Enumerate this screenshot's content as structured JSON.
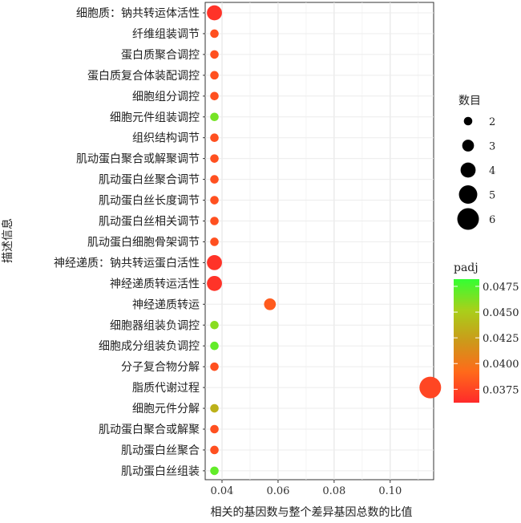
{
  "chart_data": {
    "type": "scatter",
    "xlabel": "相关的基因数与整个差异基因总数的比值",
    "ylabel": "描述信息",
    "xlim": [
      0.034,
      0.1155
    ],
    "x_ticks": [
      0.04,
      0.06,
      0.08,
      0.1
    ],
    "x_tick_labels": [
      "0.04",
      "0.06",
      "0.08",
      "0.10"
    ],
    "grid": true,
    "categories": [
      "细胞质：钠共转运体活性",
      "纤维组装调节",
      "蛋白质聚合调控",
      "蛋白质复合体装配调控",
      "细胞组分调控",
      "细胞元件组装调控",
      "组织结构调节",
      "肌动蛋白聚合或解聚调节",
      "肌动蛋白丝聚合调节",
      "肌动蛋白丝长度调节",
      "肌动蛋白丝相关调节",
      "肌动蛋白细胞骨架调节",
      "神经递质：钠共转运蛋白活性",
      "神经递质转运活性",
      "神经递质转运",
      "细胞器组装负调控",
      "细胞成分组装负调控",
      "分子复合物分解",
      "脂质代谢过程",
      "细胞元件分解",
      "肌动蛋白聚合或解聚",
      "肌动蛋白丝聚合",
      "肌动蛋白丝组装"
    ],
    "points": [
      {
        "x": 0.0373,
        "count": 4,
        "padj": 0.0366
      },
      {
        "x": 0.0373,
        "count": 2,
        "padj": 0.038
      },
      {
        "x": 0.0373,
        "count": 2,
        "padj": 0.038
      },
      {
        "x": 0.0373,
        "count": 2,
        "padj": 0.038
      },
      {
        "x": 0.0373,
        "count": 2,
        "padj": 0.038
      },
      {
        "x": 0.0373,
        "count": 2,
        "padj": 0.0465
      },
      {
        "x": 0.0373,
        "count": 2,
        "padj": 0.038
      },
      {
        "x": 0.0373,
        "count": 2,
        "padj": 0.038
      },
      {
        "x": 0.0373,
        "count": 2,
        "padj": 0.038
      },
      {
        "x": 0.0373,
        "count": 2,
        "padj": 0.038
      },
      {
        "x": 0.0373,
        "count": 2,
        "padj": 0.038
      },
      {
        "x": 0.0373,
        "count": 2,
        "padj": 0.038
      },
      {
        "x": 0.0373,
        "count": 4,
        "padj": 0.0366
      },
      {
        "x": 0.0373,
        "count": 4,
        "padj": 0.0366
      },
      {
        "x": 0.0571,
        "count": 3,
        "padj": 0.0385
      },
      {
        "x": 0.0373,
        "count": 2,
        "padj": 0.046
      },
      {
        "x": 0.0373,
        "count": 2,
        "padj": 0.047
      },
      {
        "x": 0.0373,
        "count": 2,
        "padj": 0.038
      },
      {
        "x": 0.1143,
        "count": 6,
        "padj": 0.0375
      },
      {
        "x": 0.0373,
        "count": 2,
        "padj": 0.0435
      },
      {
        "x": 0.0373,
        "count": 2,
        "padj": 0.038
      },
      {
        "x": 0.0373,
        "count": 2,
        "padj": 0.038
      },
      {
        "x": 0.0373,
        "count": 2,
        "padj": 0.047
      }
    ],
    "size_legend": {
      "title": "数目",
      "values": [
        2,
        3,
        4,
        5,
        6
      ],
      "labels": [
        "2",
        "3",
        "4",
        "5",
        "6"
      ]
    },
    "color_legend": {
      "title": "padj",
      "range": [
        0.0362,
        0.0482
      ],
      "ticks": [
        0.0475,
        0.045,
        0.0425,
        0.04,
        0.0375
      ],
      "tick_labels": [
        "0.0475",
        "0.0450",
        "0.0425",
        "0.0400",
        "0.0375"
      ],
      "colors": [
        "#ff2a2a",
        "#ff6a1a",
        "#cc9a1a",
        "#a8d01a",
        "#33ff33"
      ]
    }
  }
}
